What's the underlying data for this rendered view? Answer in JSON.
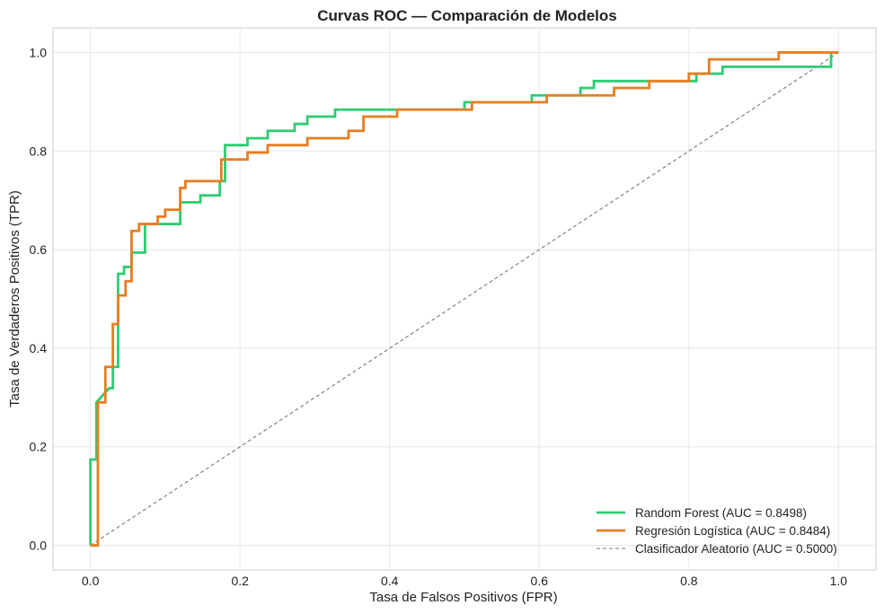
{
  "chart_data": {
    "type": "line",
    "title": "Curvas ROC — Comparación de Modelos",
    "xlabel": "Tasa de Falsos Positivos (FPR)",
    "ylabel": "Tasa de Verdaderos Positivos (TPR)",
    "xlim": [
      -0.05,
      1.05
    ],
    "ylim": [
      -0.05,
      1.05
    ],
    "xticks": [
      0.0,
      0.2,
      0.4,
      0.6,
      0.8,
      1.0
    ],
    "yticks": [
      0.0,
      0.2,
      0.4,
      0.6,
      0.8,
      1.0
    ],
    "xtick_labels": [
      "0.0",
      "0.2",
      "0.4",
      "0.6",
      "0.8",
      "1.0"
    ],
    "ytick_labels": [
      "0.0",
      "0.2",
      "0.4",
      "0.6",
      "0.8",
      "1.0"
    ],
    "grid": true,
    "legend_position": "lower-right",
    "series": [
      {
        "name": "Random Forest (AUC = 0.8498)",
        "color": "#2ecc71",
        "style": "solid",
        "x": [
          0.0,
          0.0,
          0.008,
          0.008,
          0.025,
          0.03,
          0.03,
          0.037,
          0.037,
          0.045,
          0.045,
          0.055,
          0.055,
          0.073,
          0.073,
          0.12,
          0.12,
          0.147,
          0.147,
          0.173,
          0.173,
          0.18,
          0.18,
          0.21,
          0.21,
          0.237,
          0.237,
          0.273,
          0.273,
          0.29,
          0.29,
          0.327,
          0.327,
          0.5,
          0.5,
          0.59,
          0.59,
          0.655,
          0.655,
          0.673,
          0.673,
          0.81,
          0.81,
          0.82,
          0.82,
          0.845,
          0.845,
          0.99,
          0.99,
          1.0
        ],
        "y": [
          0.0,
          0.174,
          0.174,
          0.29,
          0.319,
          0.319,
          0.362,
          0.362,
          0.551,
          0.551,
          0.565,
          0.565,
          0.594,
          0.594,
          0.652,
          0.652,
          0.696,
          0.696,
          0.71,
          0.71,
          0.739,
          0.739,
          0.812,
          0.812,
          0.826,
          0.826,
          0.841,
          0.841,
          0.855,
          0.855,
          0.87,
          0.87,
          0.884,
          0.884,
          0.899,
          0.899,
          0.913,
          0.913,
          0.928,
          0.928,
          0.942,
          0.942,
          0.957,
          0.957,
          0.957,
          0.957,
          0.971,
          0.971,
          1.0,
          1.0
        ]
      },
      {
        "name": "Regresión Logística (AUC = 0.8484)",
        "color": "#e67e22",
        "style": "solid",
        "x": [
          0.0,
          0.01,
          0.01,
          0.02,
          0.02,
          0.03,
          0.03,
          0.037,
          0.037,
          0.047,
          0.047,
          0.055,
          0.055,
          0.065,
          0.065,
          0.09,
          0.09,
          0.1,
          0.1,
          0.12,
          0.12,
          0.127,
          0.127,
          0.175,
          0.175,
          0.21,
          0.21,
          0.237,
          0.237,
          0.29,
          0.29,
          0.345,
          0.345,
          0.365,
          0.365,
          0.41,
          0.41,
          0.51,
          0.51,
          0.61,
          0.61,
          0.7,
          0.7,
          0.747,
          0.747,
          0.8,
          0.8,
          0.827,
          0.827,
          0.92,
          0.92,
          1.0
        ],
        "y": [
          0.0,
          0.0,
          0.29,
          0.29,
          0.362,
          0.362,
          0.449,
          0.449,
          0.507,
          0.507,
          0.536,
          0.536,
          0.638,
          0.638,
          0.652,
          0.652,
          0.667,
          0.667,
          0.681,
          0.681,
          0.725,
          0.725,
          0.739,
          0.739,
          0.783,
          0.783,
          0.797,
          0.797,
          0.812,
          0.812,
          0.826,
          0.826,
          0.841,
          0.841,
          0.87,
          0.87,
          0.884,
          0.884,
          0.899,
          0.899,
          0.913,
          0.913,
          0.928,
          0.928,
          0.942,
          0.942,
          0.957,
          0.957,
          0.986,
          0.986,
          1.0,
          1.0
        ]
      },
      {
        "name": "Clasificador Aleatorio (AUC = 0.5000)",
        "color": "#777777",
        "style": "dashed",
        "x": [
          0.0,
          1.0
        ],
        "y": [
          0.0,
          1.0
        ]
      }
    ]
  }
}
